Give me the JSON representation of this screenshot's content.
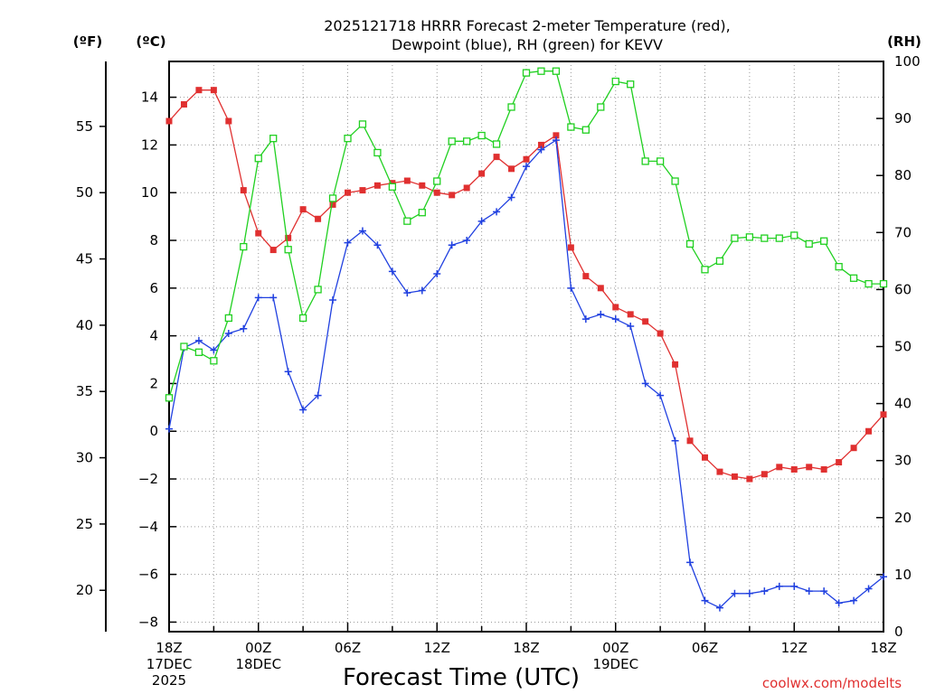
{
  "title_line1": "2025121718 HRRR Forecast 2-meter Temperature (red),",
  "title_line2": "Dewpoint (blue), RH (green) for KEVV",
  "unit_f": "(ºF)",
  "unit_c": "(ºC)",
  "unit_rh": "(RH)",
  "xlabel": "Forecast Time (UTC)",
  "credit": "coolwx.com/modelts",
  "x_ticks": [
    {
      "h": 0,
      "lines": [
        "18Z",
        "17DEC",
        "2025"
      ]
    },
    {
      "h": 6,
      "lines": [
        "00Z",
        "18DEC"
      ]
    },
    {
      "h": 12,
      "lines": [
        "06Z"
      ]
    },
    {
      "h": 18,
      "lines": [
        "12Z"
      ]
    },
    {
      "h": 24,
      "lines": [
        "18Z"
      ]
    },
    {
      "h": 30,
      "lines": [
        "00Z",
        "19DEC"
      ]
    },
    {
      "h": 36,
      "lines": [
        "06Z"
      ]
    },
    {
      "h": 42,
      "lines": [
        "12Z"
      ]
    },
    {
      "h": 48,
      "lines": [
        "18Z"
      ]
    }
  ],
  "chart_data": {
    "type": "line",
    "x": [
      0,
      1,
      2,
      3,
      4,
      5,
      6,
      7,
      8,
      9,
      10,
      11,
      12,
      13,
      14,
      15,
      16,
      17,
      18,
      19,
      20,
      21,
      22,
      23,
      24,
      25,
      26,
      27,
      28,
      29,
      30,
      31,
      32,
      33,
      34,
      35,
      36,
      37,
      38,
      39,
      40,
      41,
      42,
      43,
      44,
      45,
      46,
      47,
      48
    ],
    "x_tick_labels": [
      "18Z 17DEC 2025",
      "00Z 18DEC",
      "06Z",
      "12Z",
      "18Z",
      "00Z 19DEC",
      "06Z",
      "12Z",
      "18Z"
    ],
    "y_left_c_ticks": [
      -8,
      -6,
      -4,
      -2,
      0,
      2,
      4,
      6,
      8,
      10,
      12,
      14
    ],
    "y_left_c_range": [
      -8.4,
      15.5
    ],
    "y_left_f_ticks": [
      20,
      25,
      30,
      35,
      40,
      45,
      50,
      55
    ],
    "y_right_rh_ticks": [
      0,
      10,
      20,
      30,
      40,
      50,
      60,
      70,
      80,
      90,
      100
    ],
    "y_right_rh_range": [
      0,
      100
    ],
    "grid": true,
    "series": [
      {
        "name": "Temperature",
        "axis": "c",
        "color": "#e03030",
        "marker": "filled-square",
        "values": [
          13.0,
          13.7,
          14.3,
          14.3,
          13.0,
          10.1,
          8.3,
          7.6,
          8.1,
          9.3,
          8.9,
          9.5,
          10.0,
          10.1,
          10.3,
          10.4,
          10.5,
          10.3,
          10.0,
          9.9,
          10.2,
          10.8,
          11.5,
          11.0,
          11.4,
          12.0,
          12.4,
          7.7,
          6.5,
          6.0,
          5.2,
          4.9,
          4.6,
          4.1,
          2.8,
          -0.4,
          -1.1,
          -1.7,
          -1.9,
          -2.0,
          -1.8,
          -1.5,
          -1.6,
          -1.5,
          -1.6,
          -1.3,
          -0.7,
          0.0,
          0.7
        ]
      },
      {
        "name": "Dewpoint",
        "axis": "c",
        "color": "#2040e0",
        "marker": "plus",
        "values": [
          0.1,
          3.5,
          3.8,
          3.4,
          4.1,
          4.3,
          5.6,
          5.6,
          2.5,
          0.9,
          1.5,
          5.5,
          7.9,
          8.4,
          7.8,
          6.7,
          5.8,
          5.9,
          6.6,
          7.8,
          8.0,
          8.8,
          9.2,
          9.8,
          11.1,
          11.8,
          12.2,
          6.0,
          4.7,
          4.9,
          4.7,
          4.4,
          2.0,
          1.5,
          -0.4,
          -5.5,
          -7.1,
          -7.4,
          -6.8,
          -6.8,
          -6.7,
          -6.5,
          -6.5,
          -6.7,
          -6.7,
          -7.2,
          -7.1,
          -6.6,
          -6.1
        ]
      },
      {
        "name": "RH",
        "axis": "rh",
        "color": "#20d020",
        "marker": "open-square",
        "values": [
          41,
          50,
          49,
          47.5,
          55,
          67.5,
          83,
          86.5,
          67,
          55,
          60,
          76,
          86.5,
          89,
          84,
          78,
          72,
          73.5,
          79,
          86,
          86,
          87,
          85.5,
          92,
          98,
          98.3,
          98.3,
          88.5,
          88,
          92,
          96.5,
          96,
          82.5,
          82.5,
          79,
          68,
          63.5,
          65,
          69,
          69.2,
          69,
          69,
          69.5,
          68,
          68.5,
          64,
          62,
          61,
          61
        ]
      }
    ]
  }
}
